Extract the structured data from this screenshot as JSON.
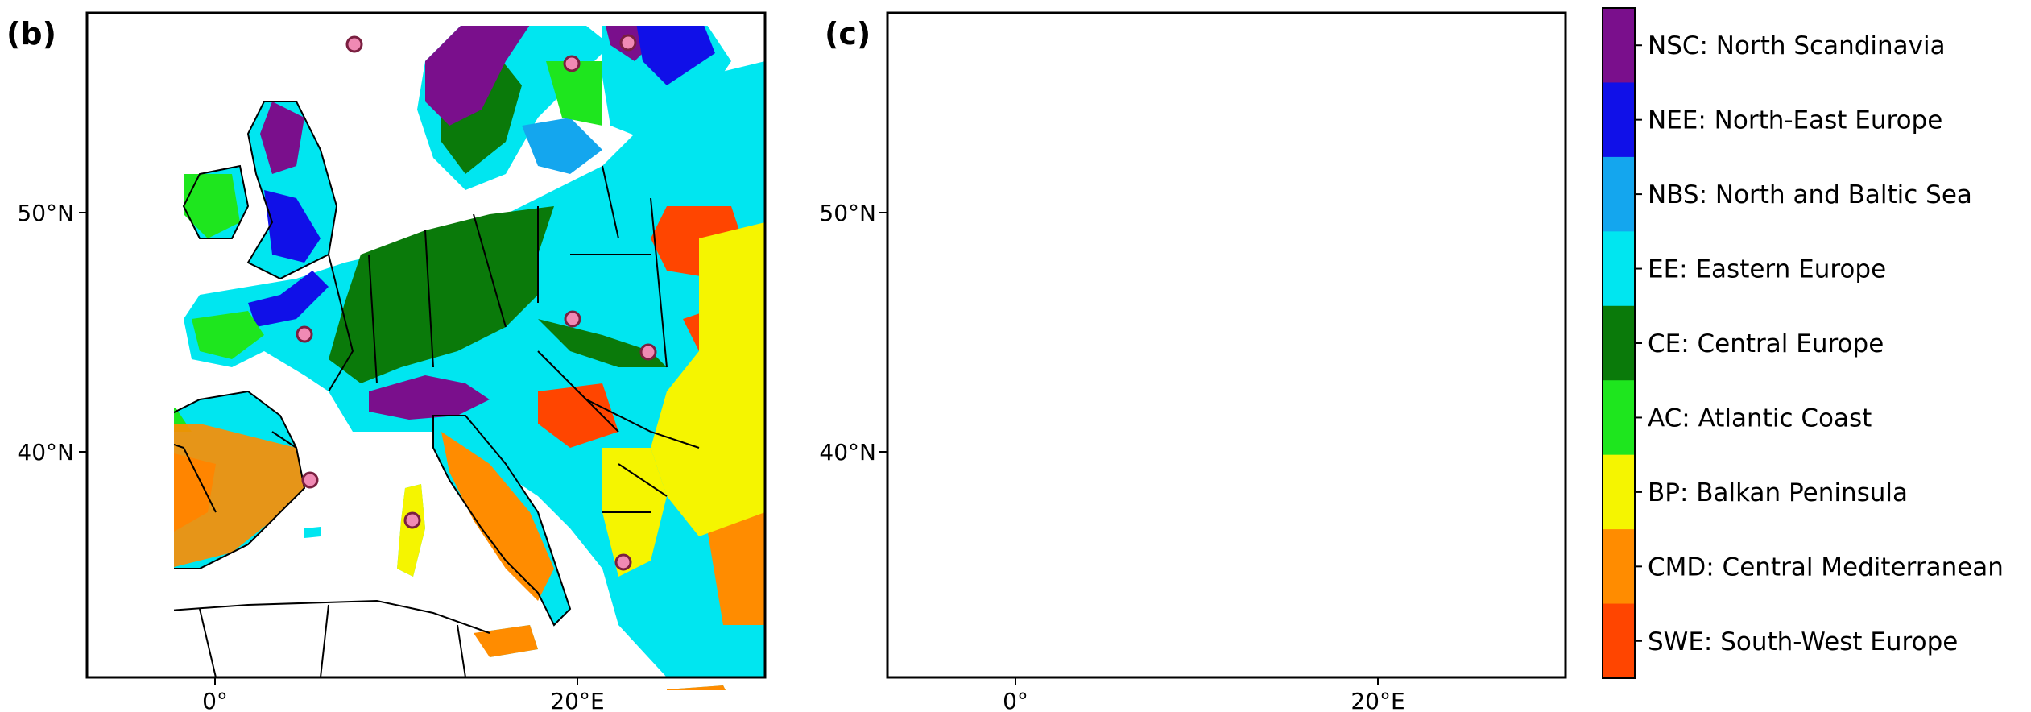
{
  "panels": [
    {
      "label": "(b)",
      "lat_ticks": [
        "50°N",
        "40°N"
      ],
      "lon_ticks": [
        "0°",
        "20°E"
      ],
      "markers": "station"
    },
    {
      "label": "(c)",
      "lat_ticks": [
        "50°N",
        "40°N"
      ],
      "lon_ticks": [
        "0°",
        "20°E"
      ]
    }
  ],
  "legend": [
    {
      "code": "NSC",
      "label": "NSC: North Scandinavia",
      "color": "#7a0f8c"
    },
    {
      "code": "NEE",
      "label": "NEE: North-East Europe",
      "color": "#1010e8"
    },
    {
      "code": "NBS",
      "label": "NBS: North and Baltic Sea",
      "color": "#14a6ee"
    },
    {
      "code": "EE",
      "label": "EE: Eastern Europe",
      "color": "#00e6f0"
    },
    {
      "code": "CE",
      "label": "CE: Central Europe",
      "color": "#0a7a0a"
    },
    {
      "code": "AC",
      "label": "AC: Atlantic Coast",
      "color": "#1ee61e"
    },
    {
      "code": "BP",
      "label": "BP: Balkan Peninsula",
      "color": "#f5f500"
    },
    {
      "code": "CMD",
      "label": "CMD: Central Mediterranean",
      "color": "#ff8c00"
    },
    {
      "code": "SWE",
      "label": "SWE: South-West Europe",
      "color": "#ff4500"
    }
  ],
  "colors": {
    "marker_fill": "#f08ab4",
    "marker_stroke": "#7a1f40",
    "border": "#000000"
  }
}
